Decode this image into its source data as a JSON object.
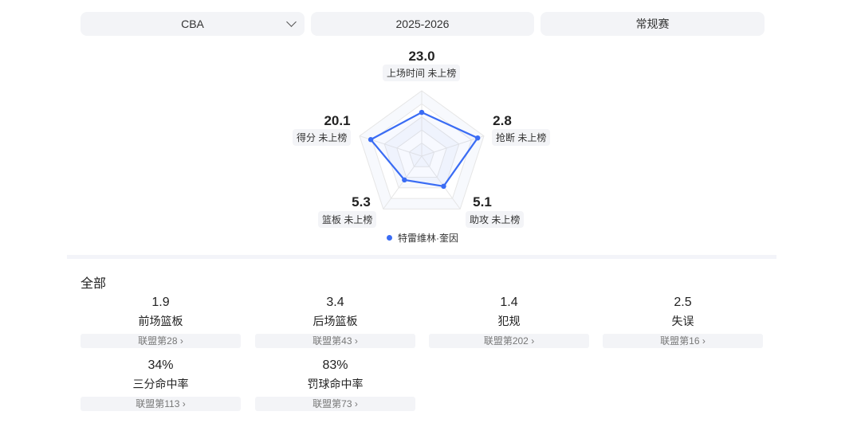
{
  "filters": {
    "league": "CBA",
    "season": "2025-2026",
    "type": "常规赛"
  },
  "chart_data": {
    "type": "radar",
    "axes": [
      {
        "label": "上场时间",
        "value": "23.0",
        "rank": "未上榜",
        "level": 0.67
      },
      {
        "label": "抢断",
        "value": "2.8",
        "rank": "未上榜",
        "level": 0.9
      },
      {
        "label": "助攻",
        "value": "5.1",
        "rank": "未上榜",
        "level": 0.57
      },
      {
        "label": "篮板",
        "value": "5.3",
        "rank": "未上榜",
        "level": 0.45
      },
      {
        "label": "得分",
        "value": "20.1",
        "rank": "未上榜",
        "level": 0.82
      }
    ],
    "series_name": "特雷维林·奎因",
    "color": "#3a6cf4"
  },
  "section_title": "全部",
  "stats": [
    {
      "value": "1.9",
      "label": "前场篮板",
      "rank": "联盟第28"
    },
    {
      "value": "3.4",
      "label": "后场篮板",
      "rank": "联盟第43"
    },
    {
      "value": "1.4",
      "label": "犯规",
      "rank": "联盟第202"
    },
    {
      "value": "2.5",
      "label": "失误",
      "rank": "联盟第16"
    },
    {
      "value": "34%",
      "label": "三分命中率",
      "rank": "联盟第113"
    },
    {
      "value": "83%",
      "label": "罚球命中率",
      "rank": "联盟第73"
    }
  ]
}
